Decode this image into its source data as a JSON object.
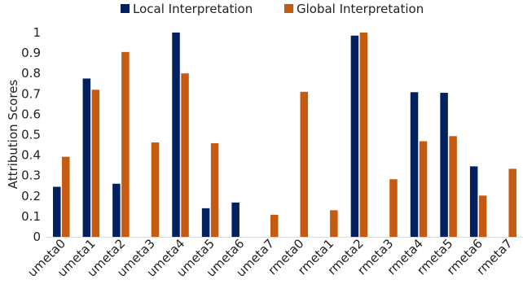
{
  "chart_data": {
    "type": "bar",
    "title": "",
    "xlabel": "",
    "ylabel": "Attribution Scores",
    "ylim": [
      0,
      1
    ],
    "yticks": [
      "0",
      "0.1",
      "0.2",
      "0.3",
      "0.4",
      "0.5",
      "0.6",
      "0.7",
      "0.8",
      "0.9",
      "1"
    ],
    "grid": false,
    "legend": "top",
    "categories": [
      "umeta0",
      "umeta1",
      "umeta2",
      "umeta3",
      "umeta4",
      "umeta5",
      "umeta6",
      "umeta7",
      "rmeta0",
      "rmeta1",
      "rmeta2",
      "rmeta3",
      "rmeta4",
      "rmeta5",
      "rmeta6",
      "rmeta7"
    ],
    "series": [
      {
        "name": "Local Interpretation",
        "color": "#002060",
        "values": [
          0.245,
          0.775,
          0.26,
          0,
          1.0,
          0.14,
          0.168,
          0,
          0,
          0,
          0.985,
          0,
          0.708,
          0.705,
          0.345,
          0
        ]
      },
      {
        "name": "Global Interpretation",
        "color": "#C55A11",
        "values": [
          0.392,
          0.72,
          0.905,
          0.462,
          0.8,
          0.458,
          0,
          0.108,
          0.71,
          0.13,
          1.0,
          0.282,
          0.468,
          0.493,
          0.202,
          0.333
        ]
      }
    ]
  }
}
